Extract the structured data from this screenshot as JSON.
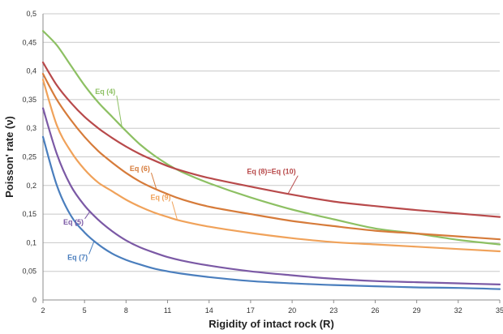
{
  "chart_data": {
    "type": "line",
    "xlabel": "Rigidity of intact rock (R)",
    "ylabel": "Poisson' rate (ν)",
    "xlim": [
      2,
      35
    ],
    "ylim": [
      0,
      0.5
    ],
    "x_ticks": [
      "2",
      "5",
      "8",
      "11",
      "14",
      "17",
      "20",
      "23",
      "26",
      "29",
      "32",
      "35"
    ],
    "y_ticks": [
      "0",
      "0,05",
      "0,1",
      "0,15",
      "0,2",
      "0,25",
      "0,3",
      "0,35",
      "0,4",
      "0,45",
      "0,5"
    ],
    "grid": true,
    "series": [
      {
        "name": "Eq (4)",
        "color": "#8dc063",
        "label_at": [
          6.5,
          0.36
        ],
        "points": [
          [
            2,
            0.47
          ],
          [
            3,
            0.445
          ],
          [
            4,
            0.41
          ],
          [
            5,
            0.375
          ],
          [
            6,
            0.345
          ],
          [
            7,
            0.32
          ],
          [
            8,
            0.295
          ],
          [
            9,
            0.272
          ],
          [
            10,
            0.253
          ],
          [
            11,
            0.237
          ],
          [
            12,
            0.224
          ],
          [
            14,
            0.204
          ],
          [
            17,
            0.179
          ],
          [
            20,
            0.158
          ],
          [
            23,
            0.141
          ],
          [
            26,
            0.125
          ],
          [
            29,
            0.116
          ],
          [
            32,
            0.105
          ],
          [
            35,
            0.097
          ]
        ]
      },
      {
        "name": "Eq (8)=Eq (10)",
        "color": "#b84a4b",
        "label_at": [
          18.5,
          0.22
        ],
        "points": [
          [
            2,
            0.415
          ],
          [
            3,
            0.375
          ],
          [
            4,
            0.345
          ],
          [
            5,
            0.32
          ],
          [
            6,
            0.3
          ],
          [
            7,
            0.283
          ],
          [
            8,
            0.268
          ],
          [
            9,
            0.255
          ],
          [
            10,
            0.244
          ],
          [
            11,
            0.234
          ],
          [
            12,
            0.226
          ],
          [
            14,
            0.213
          ],
          [
            17,
            0.198
          ],
          [
            20,
            0.184
          ],
          [
            23,
            0.172
          ],
          [
            26,
            0.164
          ],
          [
            29,
            0.157
          ],
          [
            32,
            0.151
          ],
          [
            35,
            0.145
          ]
        ]
      },
      {
        "name": "Eq (6)",
        "color": "#d67b3a",
        "label_at": [
          9,
          0.225
        ],
        "points": [
          [
            2,
            0.395
          ],
          [
            3,
            0.35
          ],
          [
            4,
            0.315
          ],
          [
            5,
            0.285
          ],
          [
            6,
            0.26
          ],
          [
            7,
            0.24
          ],
          [
            8,
            0.222
          ],
          [
            9,
            0.207
          ],
          [
            10,
            0.195
          ],
          [
            11,
            0.185
          ],
          [
            12,
            0.176
          ],
          [
            14,
            0.163
          ],
          [
            17,
            0.15
          ],
          [
            20,
            0.138
          ],
          [
            23,
            0.129
          ],
          [
            26,
            0.121
          ],
          [
            29,
            0.116
          ],
          [
            32,
            0.111
          ],
          [
            35,
            0.106
          ]
        ]
      },
      {
        "name": "Eq (9)",
        "color": "#f0a25a",
        "label_at": [
          10.5,
          0.175
        ],
        "points": [
          [
            2,
            0.385
          ],
          [
            3,
            0.305
          ],
          [
            4,
            0.26
          ],
          [
            5,
            0.228
          ],
          [
            6,
            0.205
          ],
          [
            7,
            0.19
          ],
          [
            8,
            0.175
          ],
          [
            9,
            0.163
          ],
          [
            10,
            0.153
          ],
          [
            11,
            0.145
          ],
          [
            12,
            0.138
          ],
          [
            14,
            0.128
          ],
          [
            17,
            0.117
          ],
          [
            20,
            0.108
          ],
          [
            23,
            0.101
          ],
          [
            26,
            0.097
          ],
          [
            29,
            0.093
          ],
          [
            32,
            0.089
          ],
          [
            35,
            0.085
          ]
        ]
      },
      {
        "name": "Eq (5)",
        "color": "#7b59a5",
        "label_at": [
          4.2,
          0.132
        ],
        "points": [
          [
            2,
            0.335
          ],
          [
            3,
            0.255
          ],
          [
            4,
            0.2
          ],
          [
            5,
            0.165
          ],
          [
            6,
            0.14
          ],
          [
            7,
            0.12
          ],
          [
            8,
            0.104
          ],
          [
            9,
            0.092
          ],
          [
            10,
            0.083
          ],
          [
            11,
            0.075
          ],
          [
            12,
            0.069
          ],
          [
            14,
            0.06
          ],
          [
            17,
            0.05
          ],
          [
            20,
            0.043
          ],
          [
            23,
            0.037
          ],
          [
            26,
            0.033
          ],
          [
            29,
            0.031
          ],
          [
            32,
            0.029
          ],
          [
            35,
            0.027
          ]
        ]
      },
      {
        "name": "Eq (7)",
        "color": "#4a7ebd",
        "label_at": [
          4.5,
          0.07
        ],
        "points": [
          [
            2,
            0.285
          ],
          [
            3,
            0.2
          ],
          [
            4,
            0.148
          ],
          [
            5,
            0.118
          ],
          [
            6,
            0.097
          ],
          [
            7,
            0.081
          ],
          [
            8,
            0.07
          ],
          [
            9,
            0.062
          ],
          [
            10,
            0.055
          ],
          [
            11,
            0.05
          ],
          [
            12,
            0.046
          ],
          [
            14,
            0.04
          ],
          [
            17,
            0.033
          ],
          [
            20,
            0.029
          ],
          [
            23,
            0.026
          ],
          [
            26,
            0.024
          ],
          [
            29,
            0.022
          ],
          [
            32,
            0.021
          ],
          [
            35,
            0.019
          ]
        ]
      }
    ]
  }
}
